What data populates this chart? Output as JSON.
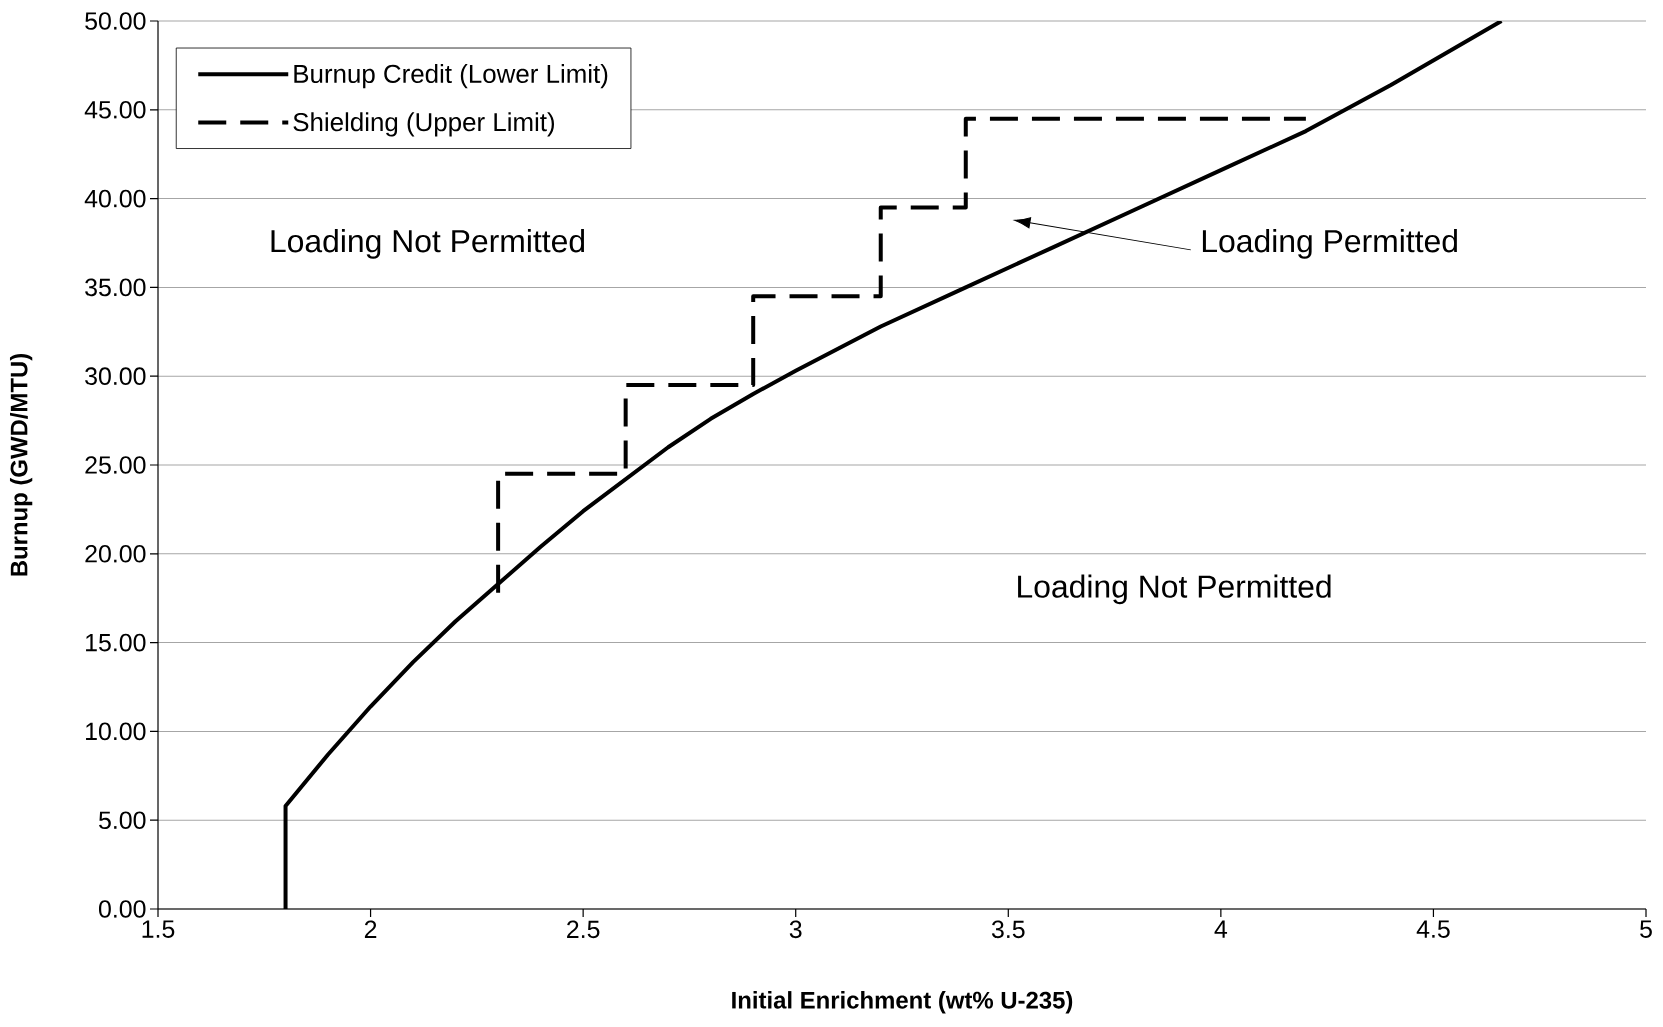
{
  "chart_data": {
    "type": "line",
    "xlabel": "Initial Enrichment (wt% U-235)",
    "ylabel": "Burnup (GWD/MTU)",
    "xlim": [
      1.5,
      5
    ],
    "xticks": [
      1.5,
      2,
      2.5,
      3,
      3.5,
      4,
      4.5,
      5
    ],
    "ylim": [
      0,
      50
    ],
    "yticks": [
      {
        "value": 0,
        "label": "0.00"
      },
      {
        "value": 5,
        "label": "5.00"
      },
      {
        "value": 10,
        "label": "10.00"
      },
      {
        "value": 15,
        "label": "15.00"
      },
      {
        "value": 20,
        "label": "20.00"
      },
      {
        "value": 25,
        "label": "25.00"
      },
      {
        "value": 30,
        "label": "30.00"
      },
      {
        "value": 35,
        "label": "35.00"
      },
      {
        "value": 40,
        "label": "40.00"
      },
      {
        "value": 45,
        "label": "45.00"
      },
      {
        "value": 50,
        "label": "50.00"
      }
    ],
    "grid": "y",
    "legend": "top left",
    "series": [
      {
        "name": "Burnup Credit (Lower Limit)",
        "color": "#000000",
        "line_style": "solid",
        "x": [
          1.8,
          1.8,
          1.9,
          2.0,
          2.1,
          2.2,
          2.3,
          2.4,
          2.5,
          2.6,
          2.7,
          2.8,
          2.9,
          3.0,
          3.2,
          3.4,
          3.6,
          3.8,
          4.0,
          4.2,
          4.4,
          4.66
        ],
        "values": [
          0,
          5.8,
          8.7,
          11.4,
          13.9,
          16.2,
          18.3,
          20.4,
          22.4,
          24.2,
          26.0,
          27.6,
          29.0,
          30.3,
          32.8,
          35.0,
          37.2,
          39.4,
          41.6,
          43.8,
          46.4,
          50
        ]
      },
      {
        "name": "Shielding (Upper Limit)",
        "color": "#000000",
        "line_style": "dashed",
        "x": [
          2.3,
          2.3,
          2.6,
          2.6,
          2.9,
          2.9,
          3.2,
          3.2,
          3.4,
          3.4,
          4.2
        ],
        "values": [
          17.8,
          24.5,
          24.5,
          29.5,
          29.5,
          34.5,
          34.5,
          39.5,
          39.5,
          44.5,
          44.5
        ]
      }
    ],
    "annotations": [
      "Loading Not Permitted",
      "Loading Permitted",
      "Loading Not Permitted"
    ]
  }
}
